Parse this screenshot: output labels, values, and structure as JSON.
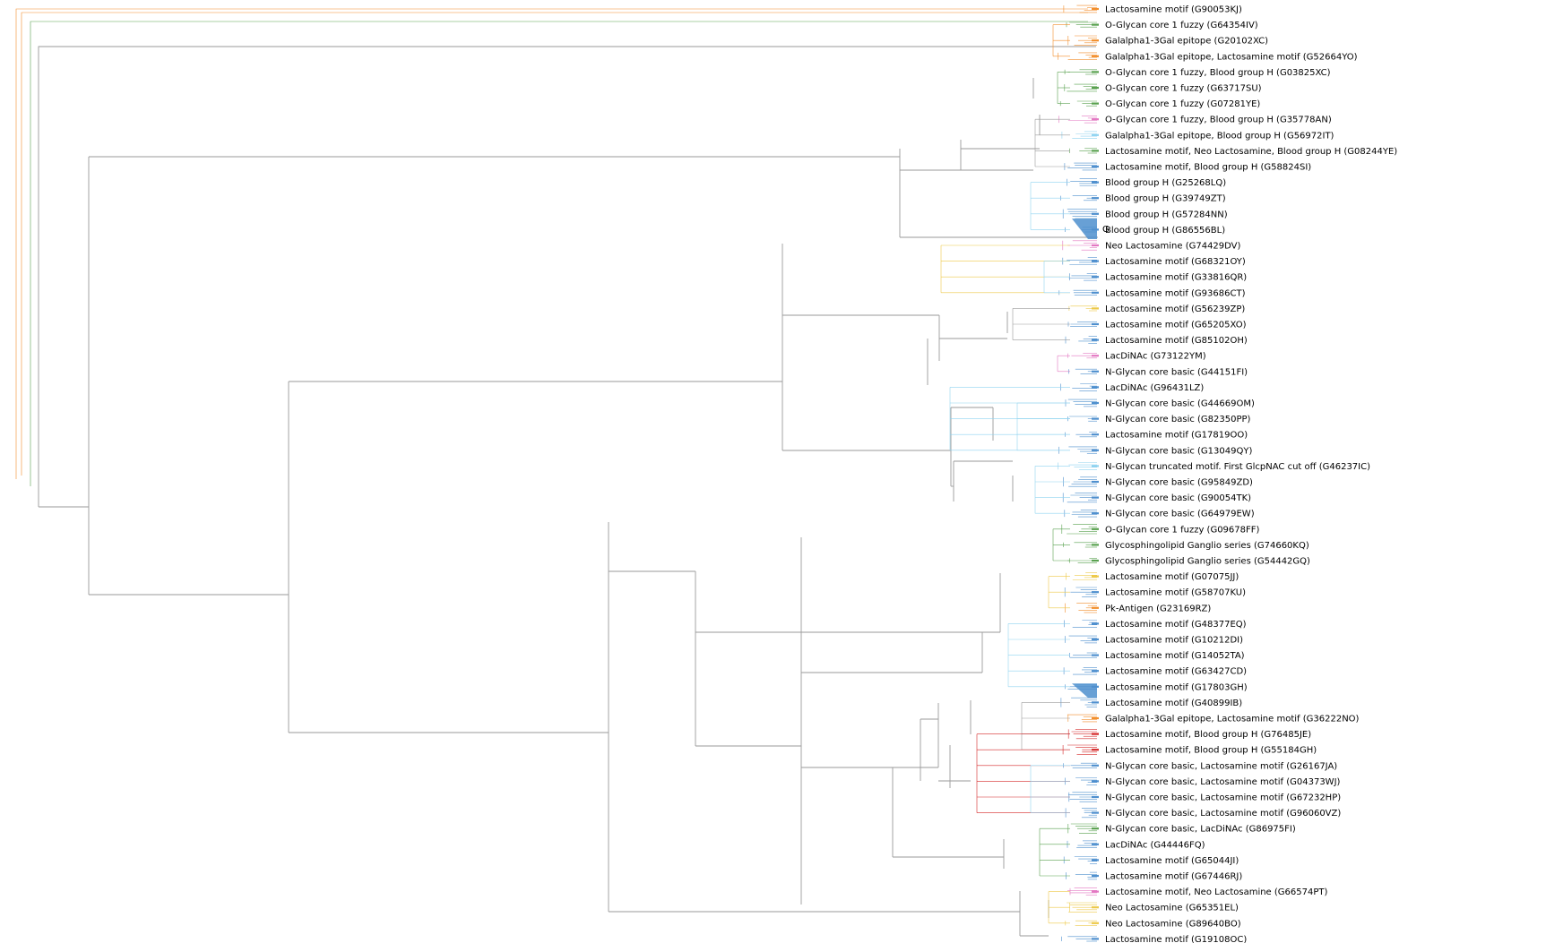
{
  "leaves": [
    {
      "label": "Lactosamine motif (G90053KJ)",
      "color": "#f28e2b"
    },
    {
      "label": "O-Glycan core 1 fuzzy (G64354IV)",
      "color": "#59a14f"
    },
    {
      "label": "Galalpha1-3Gal epitope (G20102XC)",
      "color": "#f28e2b"
    },
    {
      "label": "Galalpha1-3Gal epitope, Lactosamine motif (G52664YO)",
      "color": "#f28e2b"
    },
    {
      "label": "O-Glycan core 1 fuzzy, Blood group H (G03825XC)",
      "color": "#59a14f"
    },
    {
      "label": "O-Glycan core 1 fuzzy (G63717SU)",
      "color": "#59a14f"
    },
    {
      "label": "O-Glycan core 1 fuzzy (G07281YE)",
      "color": "#59a14f"
    },
    {
      "label": "O-Glycan core 1 fuzzy, Blood group H (G35778AN)",
      "color": "#e377c2"
    },
    {
      "label": "Galalpha1-3Gal epitope, Blood group H (G56972IT)",
      "color": "#8fd3f0"
    },
    {
      "label": "Lactosamine motif, Neo Lactosamine, Blood group H (G08244YE)",
      "color": "#59a14f"
    },
    {
      "label": "Lactosamine motif, Blood group H (G58824SI)",
      "color": "#4e8fce"
    },
    {
      "label": "Blood group H (G25268LQ)",
      "color": "#4e8fce"
    },
    {
      "label": "Blood group H (G39749ZT)",
      "color": "#4e8fce"
    },
    {
      "label": "Blood group H (G57284NN)",
      "color": "#4e8fce"
    },
    {
      "label": "Blood group H (G86556BL)",
      "color": "#4e8fce"
    },
    {
      "label": "Neo Lactosamine (G74429DV)",
      "color": "#e377c2"
    },
    {
      "label": "Lactosamine motif (G68321OY)",
      "color": "#4e8fce"
    },
    {
      "label": "Lactosamine motif (G33816QR)",
      "color": "#4e8fce"
    },
    {
      "label": "Lactosamine motif (G93686CT)",
      "color": "#4e8fce"
    },
    {
      "label": "Lactosamine motif (G56239ZP)",
      "color": "#edc948"
    },
    {
      "label": "Lactosamine motif (G65205XO)",
      "color": "#4e8fce"
    },
    {
      "label": "Lactosamine motif (G85102OH)",
      "color": "#4e8fce"
    },
    {
      "label": "LacDiNAc (G73122YM)",
      "color": "#e377c2"
    },
    {
      "label": "N-Glycan core basic (G44151FI)",
      "color": "#4e8fce"
    },
    {
      "label": "LacDiNAc (G96431LZ)",
      "color": "#4e8fce"
    },
    {
      "label": "N-Glycan core basic (G44669OM)",
      "color": "#4e8fce"
    },
    {
      "label": "N-Glycan core basic (G82350PP)",
      "color": "#4e8fce"
    },
    {
      "label": "Lactosamine motif (G17819OO)",
      "color": "#4e8fce"
    },
    {
      "label": "N-Glycan core basic (G13049QY)",
      "color": "#4e8fce"
    },
    {
      "label": "N-Glycan truncated motif. First GlcpNAC cut off (G46237IC)",
      "color": "#8fd3f0"
    },
    {
      "label": "N-Glycan core basic (G95849ZD)",
      "color": "#4e8fce"
    },
    {
      "label": "N-Glycan core basic (G90054TK)",
      "color": "#4e8fce"
    },
    {
      "label": "N-Glycan core basic (G64979EW)",
      "color": "#4e8fce"
    },
    {
      "label": "O-Glycan core 1 fuzzy (G09678FF)",
      "color": "#59a14f"
    },
    {
      "label": "Glycosphingolipid Ganglio series (G74660KQ)",
      "color": "#59a14f"
    },
    {
      "label": "Glycosphingolipid Ganglio series (G54442GQ)",
      "color": "#59a14f"
    },
    {
      "label": "Lactosamine motif (G07075JJ)",
      "color": "#edc948"
    },
    {
      "label": "Lactosamine motif (G58707KU)",
      "color": "#4e8fce"
    },
    {
      "label": "Pk-Antigen (G23169RZ)",
      "color": "#f28e2b"
    },
    {
      "label": "Lactosamine motif (G48377EQ)",
      "color": "#4e8fce"
    },
    {
      "label": "Lactosamine motif (G10212DI)",
      "color": "#4e8fce"
    },
    {
      "label": "Lactosamine motif (G14052TA)",
      "color": "#4e8fce"
    },
    {
      "label": "Lactosamine motif (G63427CD)",
      "color": "#4e8fce"
    },
    {
      "label": "Lactosamine motif (G17803GH)",
      "color": "#4e8fce"
    },
    {
      "label": "Lactosamine motif (G40899IB)",
      "color": "#4e8fce"
    },
    {
      "label": "Galalpha1-3Gal epitope, Lactosamine motif (G36222NO)",
      "color": "#f28e2b"
    },
    {
      "label": "Lactosamine motif, Blood group H (G76485JE)",
      "color": "#d62728"
    },
    {
      "label": "Lactosamine motif, Blood group H (G55184GH)",
      "color": "#d62728"
    },
    {
      "label": "N-Glycan core basic, Lactosamine motif (G26167JA)",
      "color": "#4e8fce"
    },
    {
      "label": "N-Glycan core basic, Lactosamine motif (G04373WJ)",
      "color": "#4e8fce"
    },
    {
      "label": "N-Glycan core basic, Lactosamine motif (G67232HP)",
      "color": "#4e8fce"
    },
    {
      "label": "N-Glycan core basic, Lactosamine motif (G96060VZ)",
      "color": "#4e8fce"
    },
    {
      "label": "N-Glycan core basic, LacDiNAc (G86975FI)",
      "color": "#59a14f"
    },
    {
      "label": "LacDiNAc (G44446FQ)",
      "color": "#4e8fce"
    },
    {
      "label": "Lactosamine motif (G65044JI)",
      "color": "#4e8fce"
    },
    {
      "label": "Lactosamine motif (G67446RJ)",
      "color": "#4e8fce"
    },
    {
      "label": "Lactosamine motif, Neo Lactosamine (G66574PT)",
      "color": "#e377c2"
    },
    {
      "label": "Neo Lactosamine (G65351EL)",
      "color": "#edc948"
    },
    {
      "label": "Neo Lactosamine (G89640BO)",
      "color": "#edc948"
    },
    {
      "label": "Lactosamine motif (G19108OC)",
      "color": "#4e8fce"
    }
  ],
  "overlap_label": "Blood group H (G86556BL)",
  "overlap_fragment": "G"
}
